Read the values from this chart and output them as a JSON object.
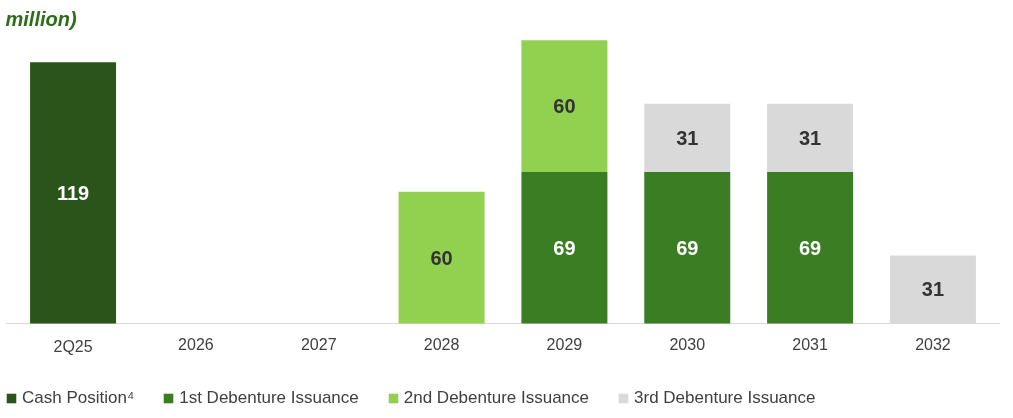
{
  "chart_data": {
    "type": "bar",
    "title": "million)",
    "stacked": true,
    "data_labels": true,
    "legend": "bottom",
    "grid": false,
    "categories": [
      "2Q25",
      "2026",
      "2027",
      "2028",
      "2029",
      "2030",
      "2031",
      "2032"
    ],
    "series": [
      {
        "name": "Cash Position⁴",
        "color": "#2a5419",
        "values": [
          119,
          null,
          null,
          null,
          null,
          null,
          null,
          null
        ]
      },
      {
        "name": "1st Debenture Issuance",
        "color": "#3a7d23",
        "values": [
          null,
          null,
          null,
          null,
          69,
          69,
          69,
          null
        ]
      },
      {
        "name": "2nd Debenture Issuance",
        "color": "#92d050",
        "values": [
          null,
          null,
          null,
          60,
          60,
          null,
          null,
          null
        ]
      },
      {
        "name": "3rd Debenture Issuance",
        "color": "#d9d9d9",
        "values": [
          null,
          null,
          null,
          null,
          null,
          31,
          31,
          31
        ]
      }
    ]
  }
}
